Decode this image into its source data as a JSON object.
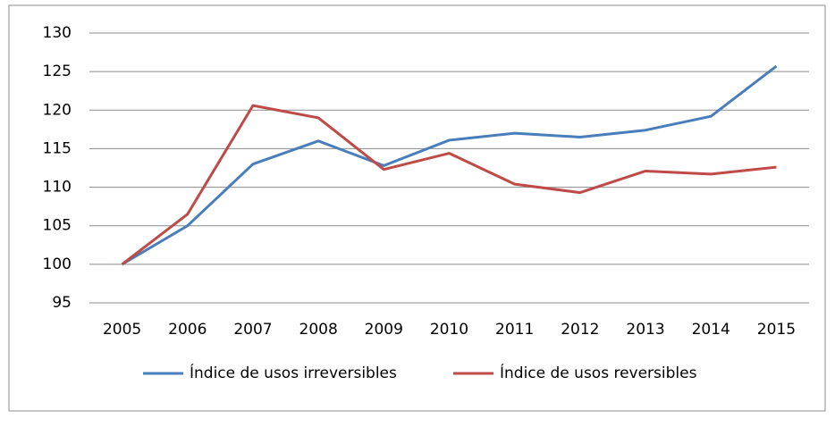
{
  "chart_data": {
    "type": "line",
    "categories": [
      "2005",
      "2006",
      "2007",
      "2008",
      "2009",
      "2010",
      "2011",
      "2012",
      "2013",
      "2014",
      "2015"
    ],
    "series": [
      {
        "name": "Índice de usos irreversibles",
        "color": "#4a7ebb",
        "values": [
          100,
          105,
          113,
          116,
          112.8,
          116.1,
          117,
          116.5,
          117.4,
          119.2,
          125.7
        ]
      },
      {
        "name": "Índice de usos reversibles",
        "color": "#be4b48",
        "values": [
          100,
          106.5,
          120.6,
          119,
          112.3,
          114.4,
          110.4,
          109.3,
          112.1,
          111.7,
          112.6
        ]
      }
    ],
    "ylim": [
      95,
      130
    ],
    "yticks": [
      95,
      100,
      105,
      110,
      115,
      120,
      125,
      130
    ],
    "grid": true,
    "legend": "bottom"
  }
}
